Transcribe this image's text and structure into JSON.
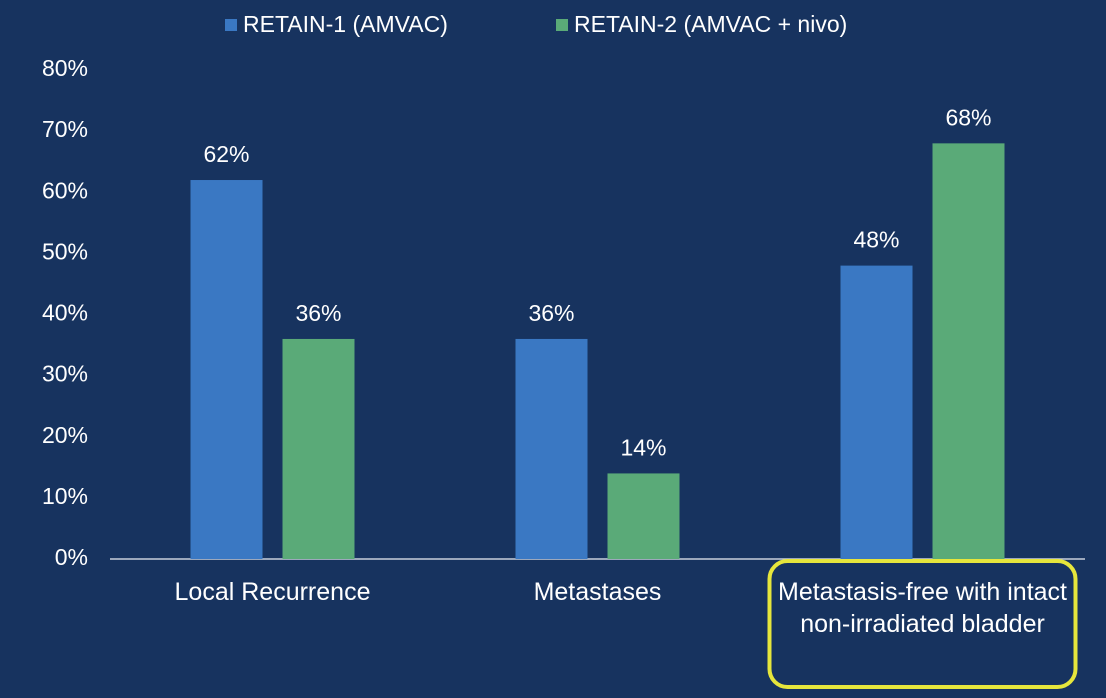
{
  "chart_data": {
    "type": "bar",
    "categories": [
      "Local Recurrence",
      "Metastases",
      "Metastasis-free with intact non-irradiated bladder"
    ],
    "series": [
      {
        "name": "RETAIN-1 (AMVAC)",
        "color": "#3a78c3",
        "values": [
          62,
          36,
          48
        ],
        "value_labels": [
          "62%",
          "36%",
          "48%"
        ]
      },
      {
        "name": "RETAIN-2 (AMVAC + nivo)",
        "color": "#5aaa78",
        "values": [
          36,
          14,
          68
        ],
        "value_labels": [
          "36%",
          "14%",
          "68%"
        ]
      }
    ],
    "ylim": [
      0,
      80
    ],
    "yticks": [
      {
        "value": 0,
        "label": "0%"
      },
      {
        "value": 10,
        "label": "10%"
      },
      {
        "value": 20,
        "label": "20%"
      },
      {
        "value": 30,
        "label": "30%"
      },
      {
        "value": 40,
        "label": "40%"
      },
      {
        "value": 50,
        "label": "50%"
      },
      {
        "value": 60,
        "label": "60%"
      },
      {
        "value": 70,
        "label": "70%"
      },
      {
        "value": 80,
        "label": "80%"
      }
    ],
    "grid": false
  }
}
